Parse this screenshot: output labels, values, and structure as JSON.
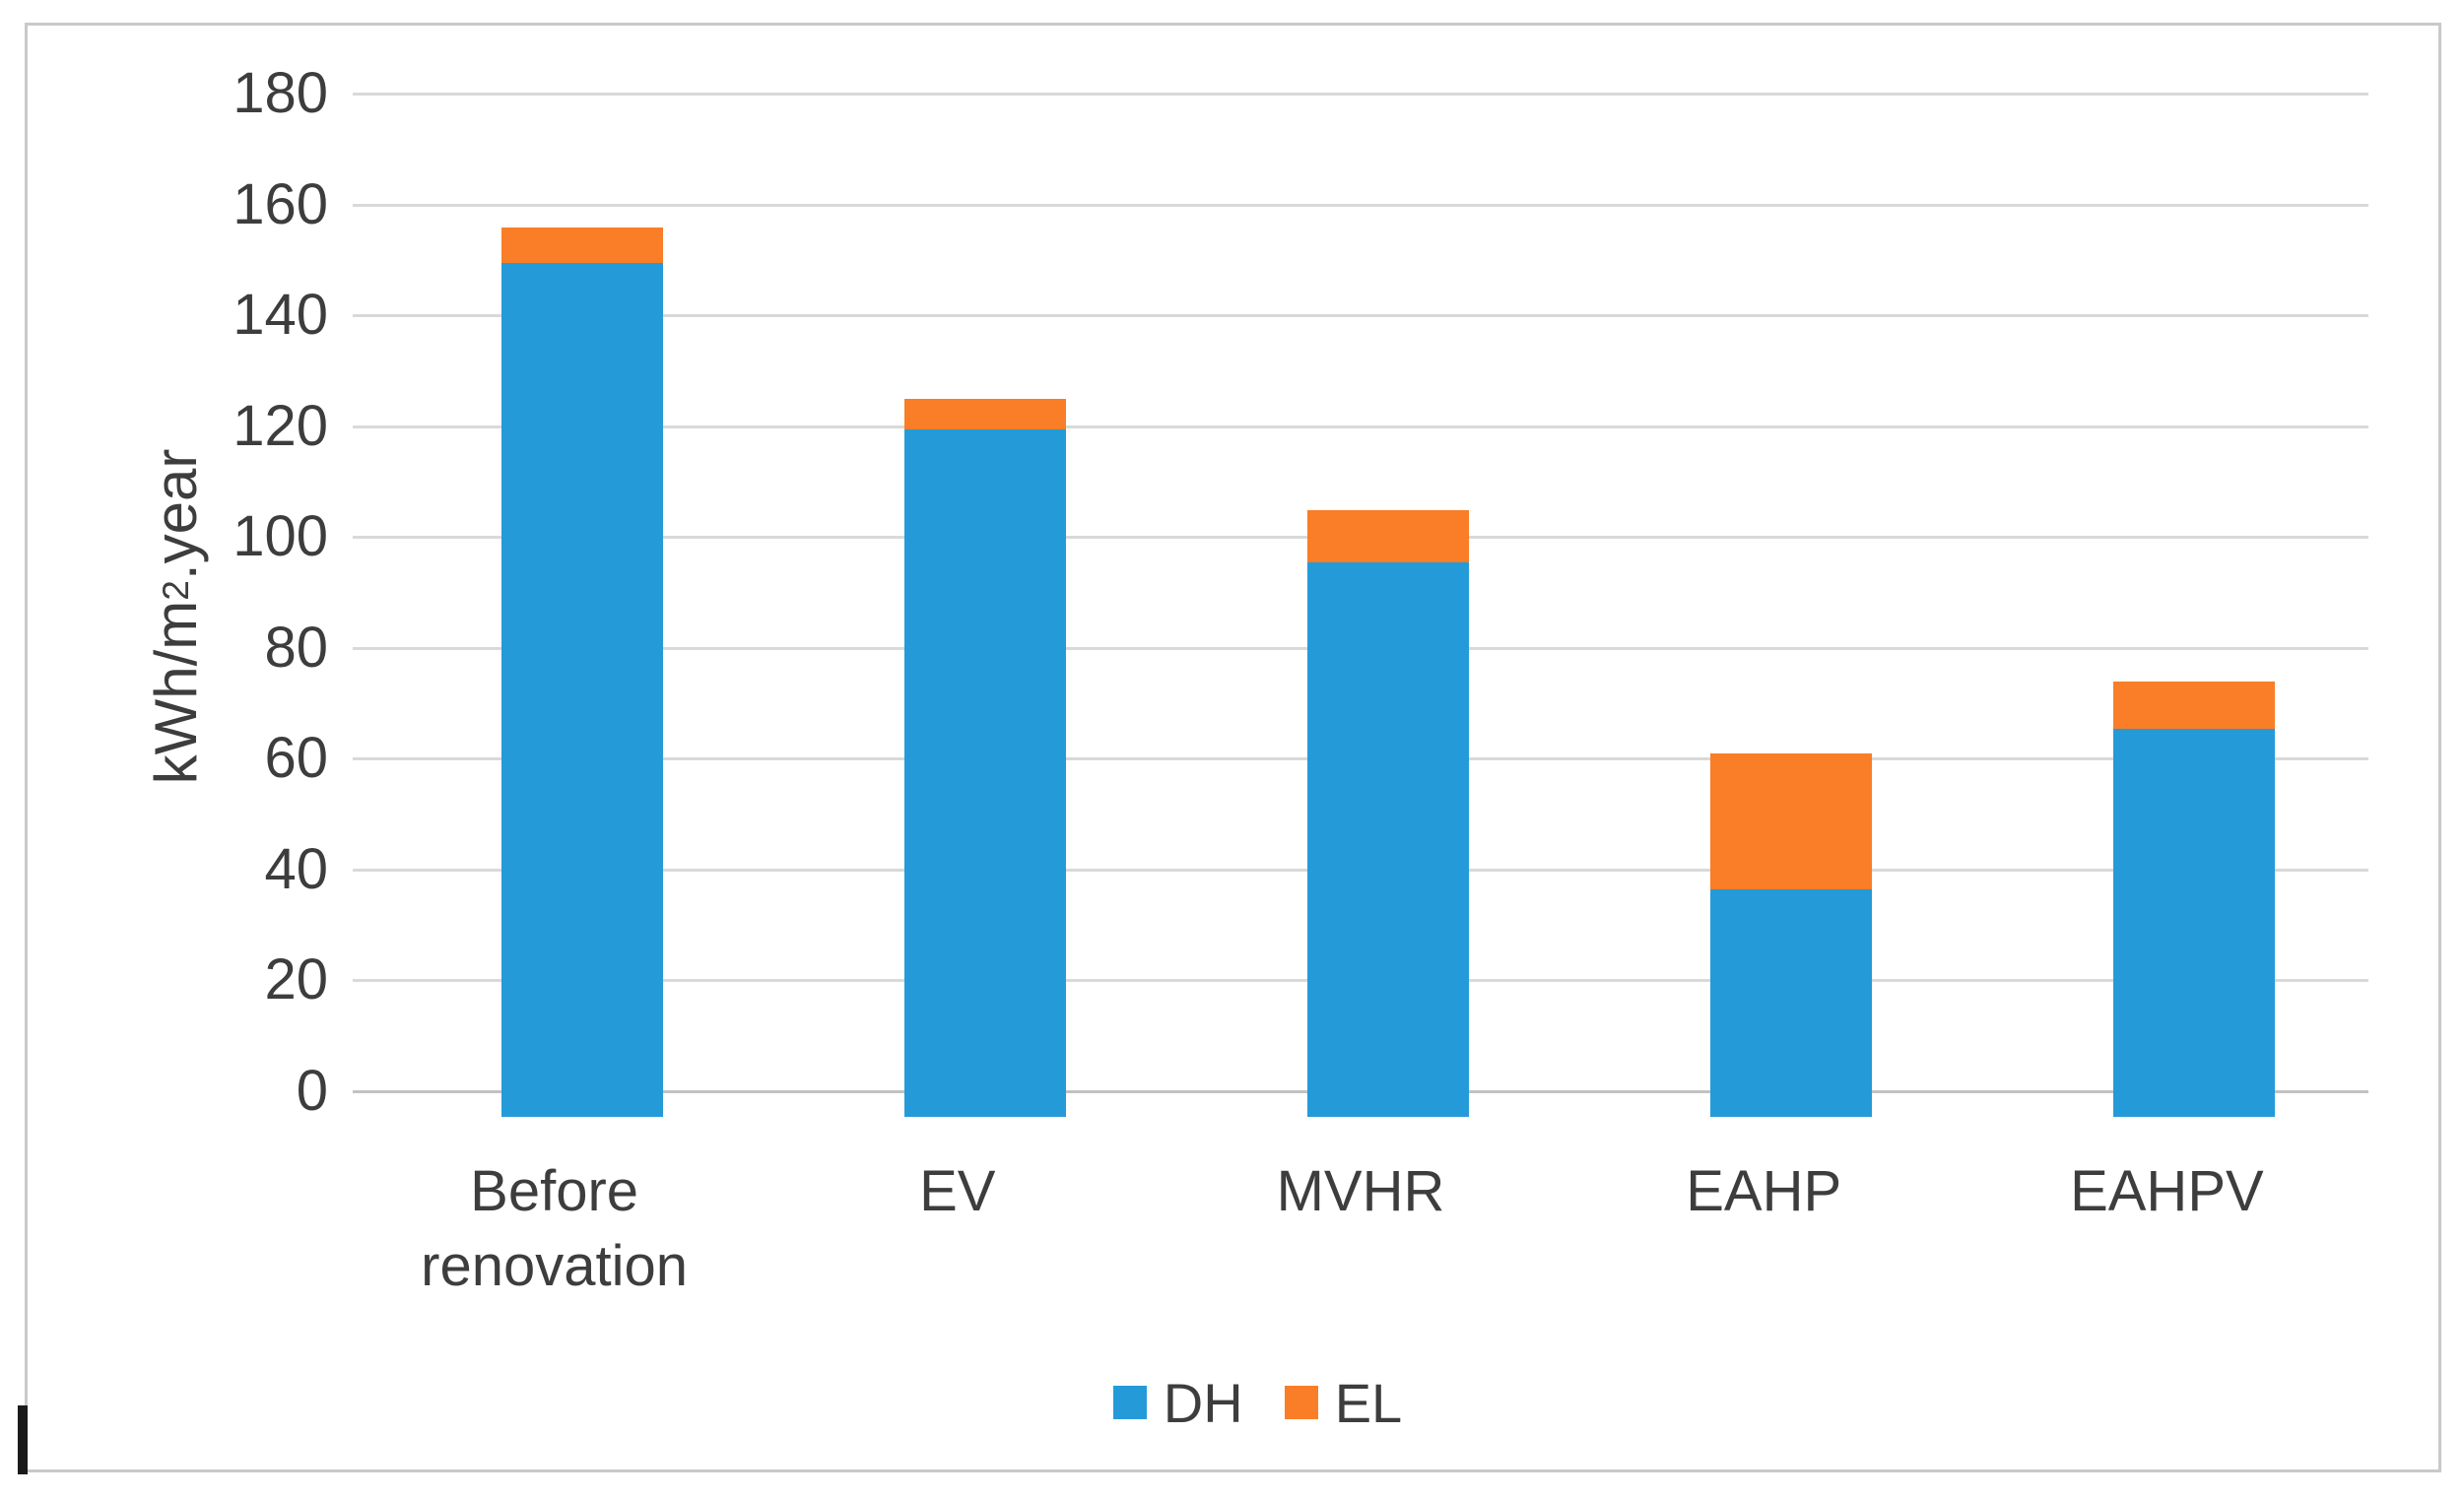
{
  "chart_data": {
    "type": "bar",
    "stacked": true,
    "title": "",
    "categories": [
      "Before renovation",
      "EV",
      "MVHR",
      "EAHP",
      "EAHPV"
    ],
    "series": [
      {
        "name": "DH",
        "color": "#249bd8",
        "values": [
          154,
          124,
          100,
          41,
          70
        ]
      },
      {
        "name": "EL",
        "color": "#f97e27",
        "values": [
          6.5,
          5.5,
          9.5,
          24.5,
          8.5
        ]
      }
    ],
    "ylabel": "kWh/m2.year",
    "ylabel_parts": {
      "prefix": "kWh/m",
      "sup": "2",
      "suffix": ".year"
    },
    "xlabel": "",
    "ylim": [
      0,
      180
    ],
    "yticks": [
      0,
      20,
      40,
      60,
      80,
      100,
      120,
      140,
      160,
      180
    ],
    "grid": "horizontal",
    "legend_position": "bottom"
  },
  "colors": {
    "gridline": "#d9d9d9",
    "axis_line": "#c2c2c2",
    "text": "#3d3d3d",
    "frame_border": "#c9c9c9",
    "background": "#ffffff",
    "caret": "#1a1a1a"
  }
}
